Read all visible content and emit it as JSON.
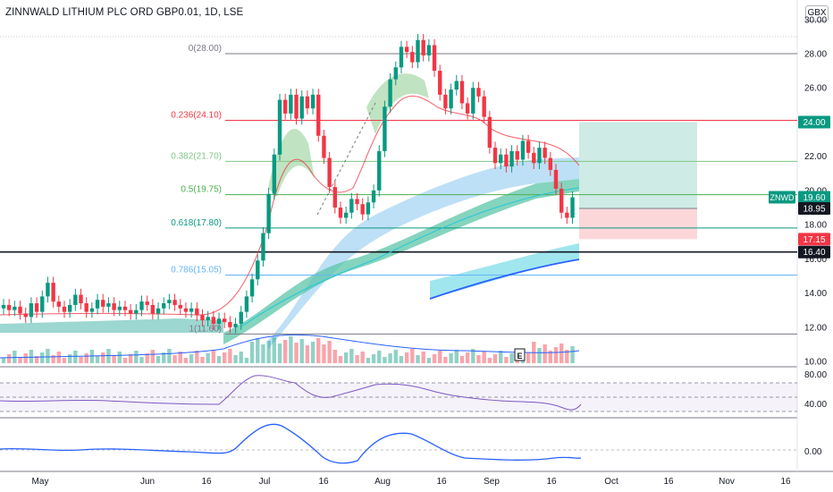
{
  "title": "ZINNWALD LITHIUM PLC ORD GBP0.01, 1D, LSE",
  "currency_button": "GBX",
  "chart_data": {
    "type": "candlestick",
    "symbol_tag": "ZNWD",
    "price_axis_ticks": [
      "30.00",
      "28.00",
      "26.00",
      "24.00",
      "22.00",
      "20.00",
      "18.00",
      "16.00",
      "14.00",
      "12.00",
      "10.00"
    ],
    "rsi_axis_ticks": [
      "80.00",
      "40.00"
    ],
    "osc_axis_ticks": [
      "0.00"
    ],
    "x_tick_labels": [
      "May",
      "Jun",
      "16",
      "Jul",
      "16",
      "Aug",
      "16",
      "Sep",
      "16",
      "Oct",
      "16",
      "Nov",
      "16"
    ],
    "fib_levels": [
      {
        "label": "0(28.00)",
        "price": 28.0,
        "color": "#787b86"
      },
      {
        "label": "0.236(24.10)",
        "price": 24.1,
        "color": "#f23645"
      },
      {
        "label": "0.382(21.70)",
        "price": 21.7,
        "color": "#81c784"
      },
      {
        "label": "0.5(19.75)",
        "price": 19.75,
        "color": "#4caf50"
      },
      {
        "label": "0.618(17.80)",
        "price": 17.8,
        "color": "#089981"
      },
      {
        "label": "0.786(15.05)",
        "price": 15.05,
        "color": "#64b5f6"
      },
      {
        "label": "1(11.60)",
        "price": 11.6,
        "color": "#787b86"
      }
    ],
    "price_labels": [
      {
        "text": "24.00",
        "price": 24.0,
        "bg": "#089981",
        "fg": "#ffffff"
      },
      {
        "text": "19.60",
        "price": 19.6,
        "bg": "#089981",
        "fg": "#ffffff"
      },
      {
        "text": "18.95",
        "price": 18.95,
        "bg": "#131722",
        "fg": "#ffffff"
      },
      {
        "text": "17.15",
        "price": 17.15,
        "bg": "#f23645",
        "fg": "#ffffff"
      },
      {
        "text": "16.40",
        "price": 16.4,
        "bg": "#131722",
        "fg": "#ffffff"
      }
    ],
    "horizontal_line": 16.4,
    "position": {
      "target": 24.0,
      "entry": 18.95,
      "stop": 17.15
    },
    "earnings_marker": "E",
    "y_range": [
      9.8,
      31.0
    ],
    "colors": {
      "up": "#089981",
      "down": "#f23645",
      "rsi": "#7e57c2",
      "osc": "#2962ff"
    }
  }
}
